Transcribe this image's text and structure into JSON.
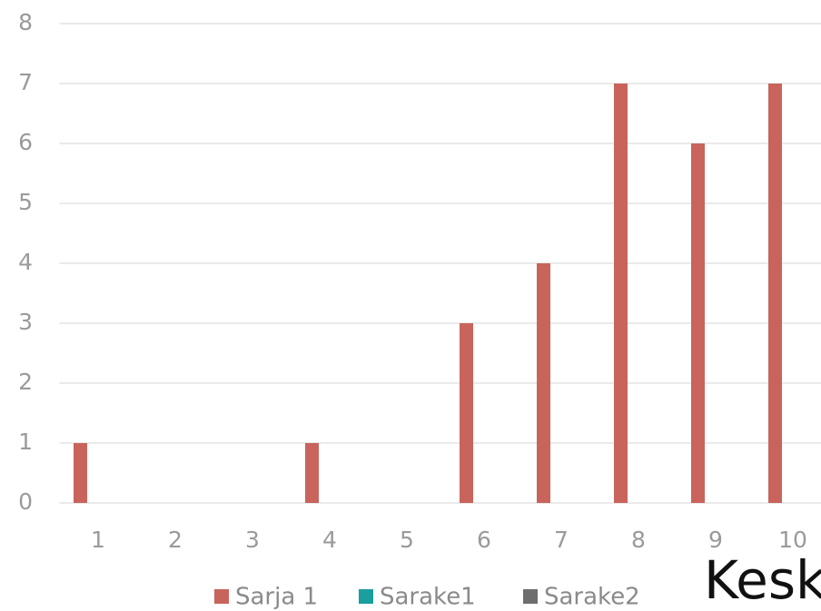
{
  "chart_data": {
    "type": "bar",
    "categories": [
      "1",
      "2",
      "3",
      "4",
      "5",
      "6",
      "7",
      "8",
      "9",
      "10"
    ],
    "series": [
      {
        "name": "Sarja 1",
        "color": "#c9645c",
        "values": [
          1,
          0,
          0,
          1,
          0,
          3,
          4,
          7,
          6,
          7
        ]
      },
      {
        "name": "Sarake1",
        "color": "#1a9e9e",
        "values": [
          null,
          null,
          null,
          null,
          null,
          null,
          null,
          null,
          null,
          null
        ]
      },
      {
        "name": "Sarake2",
        "color": "#6e6e6e",
        "values": [
          null,
          null,
          null,
          null,
          null,
          null,
          null,
          null,
          null,
          null
        ]
      }
    ],
    "ylim": [
      0,
      8
    ],
    "yticks": [
      0,
      1,
      2,
      3,
      4,
      5,
      6,
      7,
      8
    ],
    "grid": true,
    "legend": "bottom",
    "annotation": "Kesk"
  }
}
